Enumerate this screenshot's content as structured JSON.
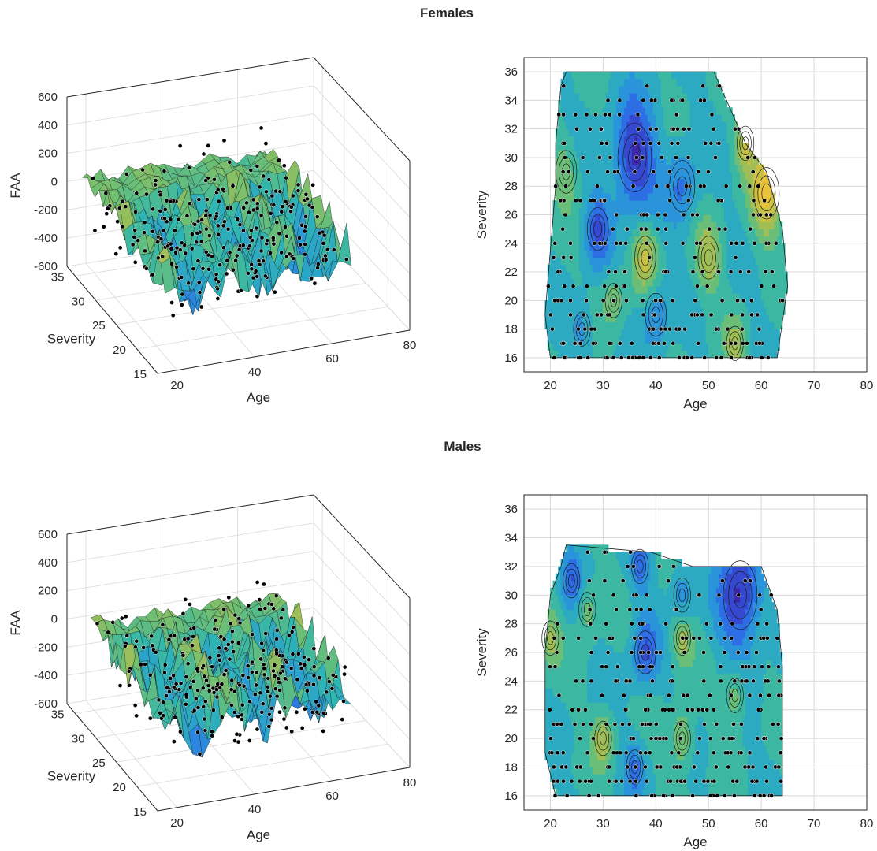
{
  "panels": [
    {
      "title": "Females"
    },
    {
      "title": "Males"
    }
  ],
  "colors": {
    "axis": "#262626",
    "grid": "#d9d9d9",
    "low": "#3e26a8",
    "mid": "#2a9ad8",
    "high": "#e9c43a",
    "point": "#000000"
  },
  "chart_data": [
    {
      "type": "surface3d",
      "group": "Females",
      "xlabel": "Age",
      "ylabel": "Severity",
      "zlabel": "FAA",
      "x_ticks": [
        20,
        40,
        60,
        80
      ],
      "y_ticks": [
        15,
        20,
        25,
        30,
        35
      ],
      "z_ticks": [
        -600,
        -400,
        -200,
        0,
        200,
        400,
        600
      ],
      "xlim": [
        15,
        80
      ],
      "ylim": [
        15,
        37
      ],
      "zlim": [
        -600,
        600
      ],
      "data_extent": {
        "age": [
          18,
          66
        ],
        "severity": [
          16,
          36
        ]
      }
    },
    {
      "type": "contour",
      "group": "Females",
      "xlabel": "Age",
      "ylabel": "Severity",
      "x_ticks": [
        20,
        30,
        40,
        50,
        60,
        70,
        80
      ],
      "y_ticks": [
        16,
        18,
        20,
        22,
        24,
        26,
        28,
        30,
        32,
        34,
        36
      ],
      "xlim": [
        15,
        80
      ],
      "ylim": [
        15,
        37
      ],
      "outline": [
        [
          23,
          36
        ],
        [
          51,
          36
        ],
        [
          57,
          31
        ],
        [
          61,
          29
        ],
        [
          64,
          25
        ],
        [
          65,
          21
        ],
        [
          63,
          16
        ],
        [
          20,
          16
        ],
        [
          19,
          19
        ],
        [
          21,
          28
        ],
        [
          21,
          31
        ],
        [
          22,
          35
        ]
      ],
      "hotspots": [
        {
          "x": 36,
          "y": 30,
          "level": -1.0,
          "r": 4
        },
        {
          "x": 61,
          "y": 27.5,
          "level": 1.0,
          "r": 3
        },
        {
          "x": 29,
          "y": 25,
          "level": -0.7,
          "r": 2.5
        },
        {
          "x": 38,
          "y": 23,
          "level": 0.7,
          "r": 2.5
        },
        {
          "x": 50,
          "y": 23,
          "level": 0.6,
          "r": 2.5
        },
        {
          "x": 55,
          "y": 17,
          "level": 0.5,
          "r": 2
        },
        {
          "x": 45,
          "y": 28,
          "level": -0.5,
          "r": 3
        },
        {
          "x": 23,
          "y": 29,
          "level": 0.4,
          "r": 2.5
        },
        {
          "x": 57,
          "y": 31,
          "level": 0.7,
          "r": 2
        },
        {
          "x": 32,
          "y": 20,
          "level": 0.45,
          "r": 2
        },
        {
          "x": 40,
          "y": 19,
          "level": -0.5,
          "r": 2.5
        },
        {
          "x": 26,
          "y": 18,
          "level": -0.4,
          "r": 2
        }
      ]
    },
    {
      "type": "surface3d",
      "group": "Males",
      "xlabel": "Age",
      "ylabel": "Severity",
      "zlabel": "FAA",
      "x_ticks": [
        20,
        40,
        60,
        80
      ],
      "y_ticks": [
        15,
        20,
        25,
        30,
        35
      ],
      "z_ticks": [
        -600,
        -400,
        -200,
        0,
        200,
        400,
        600
      ],
      "xlim": [
        15,
        80
      ],
      "ylim": [
        15,
        37
      ],
      "zlim": [
        -600,
        600
      ],
      "data_extent": {
        "age": [
          18,
          66
        ],
        "severity": [
          16,
          34
        ]
      }
    },
    {
      "type": "contour",
      "group": "Males",
      "xlabel": "Age",
      "ylabel": "Severity",
      "x_ticks": [
        20,
        30,
        40,
        50,
        60,
        70,
        80
      ],
      "y_ticks": [
        16,
        18,
        20,
        22,
        24,
        26,
        28,
        30,
        32,
        34,
        36
      ],
      "xlim": [
        15,
        80
      ],
      "ylim": [
        15,
        37
      ],
      "outline": [
        [
          23,
          33.5
        ],
        [
          39,
          33
        ],
        [
          47,
          32
        ],
        [
          60,
          32
        ],
        [
          63,
          29
        ],
        [
          64,
          25
        ],
        [
          64,
          16
        ],
        [
          21,
          16
        ],
        [
          19,
          19
        ],
        [
          19,
          26
        ],
        [
          20,
          30
        ],
        [
          22,
          32
        ]
      ],
      "hotspots": [
        {
          "x": 56,
          "y": 30,
          "level": -1.0,
          "r": 4
        },
        {
          "x": 38,
          "y": 26,
          "level": -0.7,
          "r": 2.5
        },
        {
          "x": 24,
          "y": 31,
          "level": -0.6,
          "r": 2
        },
        {
          "x": 37,
          "y": 32,
          "level": -0.5,
          "r": 2
        },
        {
          "x": 45,
          "y": 30,
          "level": -0.5,
          "r": 2
        },
        {
          "x": 45,
          "y": 27,
          "level": 0.6,
          "r": 2
        },
        {
          "x": 30,
          "y": 20,
          "level": 0.6,
          "r": 2
        },
        {
          "x": 45,
          "y": 20,
          "level": 0.6,
          "r": 2
        },
        {
          "x": 55,
          "y": 23,
          "level": 0.5,
          "r": 2
        },
        {
          "x": 20,
          "y": 27,
          "level": 0.5,
          "r": 2
        },
        {
          "x": 36,
          "y": 18,
          "level": -0.5,
          "r": 2
        },
        {
          "x": 27,
          "y": 29,
          "level": 0.4,
          "r": 2
        }
      ]
    }
  ]
}
